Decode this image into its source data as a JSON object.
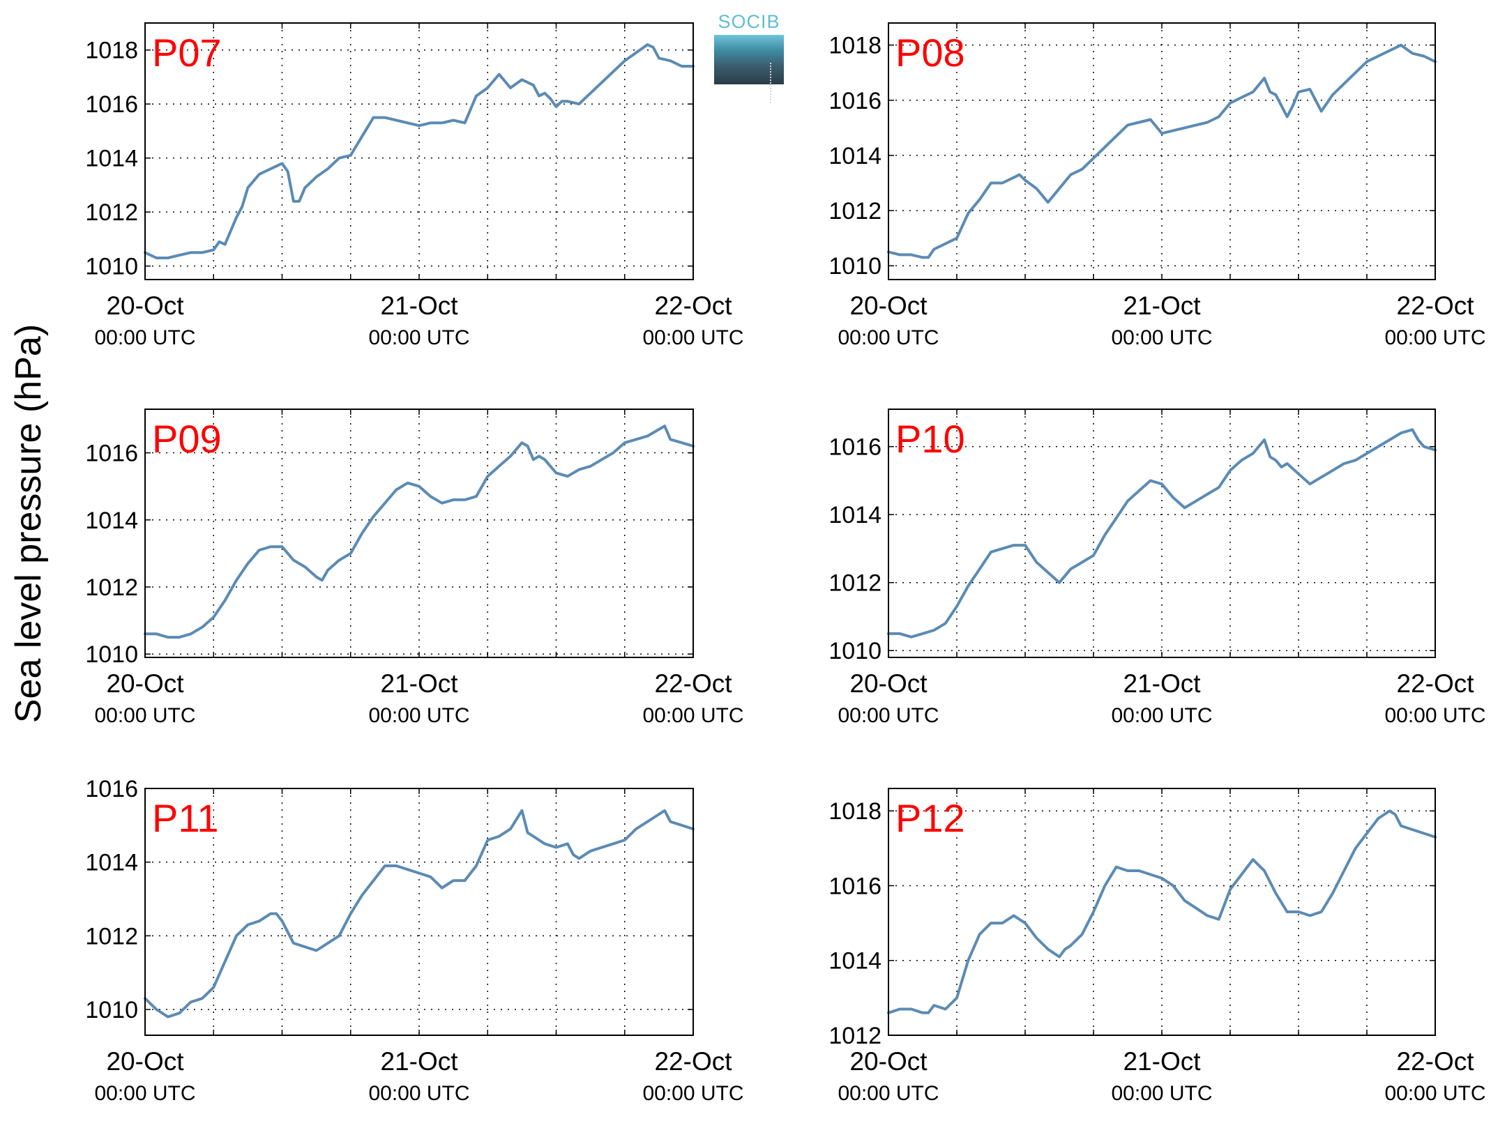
{
  "figure": {
    "ylabel": "Sea level pressure (hPa)",
    "logo_text": "SOCIB",
    "line_color": "#5b8bb4",
    "label_color": "#ff0000"
  },
  "chart_data": [
    {
      "type": "line",
      "label": "P07",
      "x_ticks": [
        "20-Oct",
        "21-Oct",
        "22-Oct"
      ],
      "x_tick_sub": "00:00 UTC",
      "xlim_hours": [
        0,
        48
      ],
      "ylim": [
        1009.5,
        1019
      ],
      "y_ticks": [
        1010,
        1012,
        1014,
        1016,
        1018
      ],
      "grid": true,
      "series": [
        {
          "x_hours": [
            0,
            1,
            2,
            3,
            4,
            5,
            6,
            6.5,
            7,
            8,
            8.5,
            9,
            10,
            11,
            12,
            12.5,
            13,
            13.5,
            14,
            15,
            16,
            17,
            18,
            19,
            20,
            21,
            22,
            23,
            24,
            25,
            26,
            27,
            28,
            29,
            30,
            31,
            32,
            33,
            33.5,
            34,
            34.5,
            35,
            35.5,
            36,
            36.5,
            37,
            38,
            39,
            40,
            41,
            42,
            43,
            44,
            44.5,
            45,
            46,
            47,
            48
          ],
          "values": [
            1010.5,
            1010.3,
            1010.3,
            1010.4,
            1010.5,
            1010.5,
            1010.6,
            1010.9,
            1010.8,
            1011.8,
            1012.2,
            1012.9,
            1013.4,
            1013.6,
            1013.8,
            1013.5,
            1012.4,
            1012.4,
            1012.9,
            1013.3,
            1013.6,
            1014.0,
            1014.1,
            1014.8,
            1015.5,
            1015.5,
            1015.4,
            1015.3,
            1015.2,
            1015.3,
            1015.3,
            1015.4,
            1015.3,
            1016.3,
            1016.6,
            1017.1,
            1016.6,
            1016.9,
            1016.8,
            1016.7,
            1016.3,
            1016.4,
            1016.2,
            1015.9,
            1016.1,
            1016.1,
            1016.0,
            1016.4,
            1016.8,
            1017.2,
            1017.6,
            1017.9,
            1018.2,
            1018.1,
            1017.7,
            1017.6,
            1017.4,
            1017.4
          ]
        }
      ]
    },
    {
      "type": "line",
      "label": "P08",
      "x_ticks": [
        "20-Oct",
        "21-Oct",
        "22-Oct"
      ],
      "x_tick_sub": "00:00 UTC",
      "xlim_hours": [
        0,
        48
      ],
      "ylim": [
        1009.5,
        1018.8
      ],
      "y_ticks": [
        1010,
        1012,
        1014,
        1016,
        1018
      ],
      "grid": true,
      "series": [
        {
          "x_hours": [
            0,
            1,
            2,
            3,
            3.5,
            4,
            5,
            6,
            7,
            8,
            9,
            10,
            11,
            11.5,
            12,
            13,
            14,
            15,
            16,
            17,
            18,
            19,
            20,
            21,
            22,
            23,
            24,
            25,
            26,
            27,
            28,
            29,
            30,
            31,
            32,
            33,
            33.5,
            34,
            34.5,
            35,
            35.5,
            36,
            37,
            38,
            39,
            40,
            41,
            42,
            43,
            44,
            45,
            46,
            47,
            48
          ],
          "values": [
            1010.5,
            1010.4,
            1010.4,
            1010.3,
            1010.3,
            1010.6,
            1010.8,
            1011.0,
            1011.9,
            1012.4,
            1013.0,
            1013.0,
            1013.2,
            1013.3,
            1013.1,
            1012.8,
            1012.3,
            1012.8,
            1013.3,
            1013.5,
            1013.9,
            1014.3,
            1014.7,
            1015.1,
            1015.2,
            1015.3,
            1014.8,
            1014.9,
            1015.0,
            1015.1,
            1015.2,
            1015.4,
            1015.9,
            1016.1,
            1016.3,
            1016.8,
            1016.3,
            1016.2,
            1015.8,
            1015.4,
            1015.8,
            1016.3,
            1016.4,
            1015.6,
            1016.2,
            1016.6,
            1017.0,
            1017.4,
            1017.6,
            1017.8,
            1018.0,
            1017.7,
            1017.6,
            1017.4
          ]
        }
      ]
    },
    {
      "type": "line",
      "label": "P09",
      "x_ticks": [
        "20-Oct",
        "21-Oct",
        "22-Oct"
      ],
      "x_tick_sub": "00:00 UTC",
      "xlim_hours": [
        0,
        48
      ],
      "ylim": [
        1009.9,
        1017.3
      ],
      "y_ticks": [
        1010,
        1012,
        1014,
        1016
      ],
      "grid": true,
      "series": [
        {
          "x_hours": [
            0,
            1,
            2,
            3,
            4,
            5,
            6,
            7,
            8,
            9,
            10,
            11,
            12,
            13,
            14,
            15,
            15.5,
            16,
            17,
            18,
            19,
            20,
            21,
            22,
            23,
            24,
            25,
            26,
            27,
            28,
            29,
            30,
            31,
            32,
            33,
            33.5,
            34,
            34.5,
            35,
            36,
            37,
            38,
            39,
            40,
            41,
            42,
            43,
            44,
            45,
            45.5,
            46,
            47,
            48
          ],
          "values": [
            1010.6,
            1010.6,
            1010.5,
            1010.5,
            1010.6,
            1010.8,
            1011.1,
            1011.6,
            1012.2,
            1012.7,
            1013.1,
            1013.2,
            1013.2,
            1012.8,
            1012.6,
            1012.3,
            1012.2,
            1012.5,
            1012.8,
            1013.0,
            1013.6,
            1014.1,
            1014.5,
            1014.9,
            1015.1,
            1015.0,
            1014.7,
            1014.5,
            1014.6,
            1014.6,
            1014.7,
            1015.3,
            1015.6,
            1015.9,
            1016.3,
            1016.2,
            1015.8,
            1015.9,
            1015.8,
            1015.4,
            1015.3,
            1015.5,
            1015.6,
            1015.8,
            1016.0,
            1016.3,
            1016.4,
            1016.5,
            1016.7,
            1016.8,
            1016.4,
            1016.3,
            1016.2
          ]
        }
      ]
    },
    {
      "type": "line",
      "label": "P10",
      "x_ticks": [
        "20-Oct",
        "21-Oct",
        "22-Oct"
      ],
      "x_tick_sub": "00:00 UTC",
      "xlim_hours": [
        0,
        48
      ],
      "ylim": [
        1009.8,
        1017.1
      ],
      "y_ticks": [
        1010,
        1012,
        1014,
        1016
      ],
      "grid": true,
      "series": [
        {
          "x_hours": [
            0,
            1,
            2,
            3,
            4,
            5,
            6,
            7,
            8,
            9,
            10,
            11,
            12,
            13,
            14,
            15,
            16,
            17,
            18,
            19,
            20,
            21,
            22,
            23,
            24,
            25,
            26,
            27,
            28,
            29,
            30,
            31,
            32,
            33,
            33.5,
            34,
            34.5,
            35,
            36,
            37,
            38,
            39,
            40,
            41,
            42,
            43,
            44,
            45,
            46,
            46.5,
            47,
            48
          ],
          "values": [
            1010.5,
            1010.5,
            1010.4,
            1010.5,
            1010.6,
            1010.8,
            1011.3,
            1011.9,
            1012.4,
            1012.9,
            1013.0,
            1013.1,
            1013.1,
            1012.6,
            1012.3,
            1012.0,
            1012.4,
            1012.6,
            1012.8,
            1013.4,
            1013.9,
            1014.4,
            1014.7,
            1015.0,
            1014.9,
            1014.5,
            1014.2,
            1014.4,
            1014.6,
            1014.8,
            1015.3,
            1015.6,
            1015.8,
            1016.2,
            1015.7,
            1015.6,
            1015.4,
            1015.5,
            1015.2,
            1014.9,
            1015.1,
            1015.3,
            1015.5,
            1015.6,
            1015.8,
            1016.0,
            1016.2,
            1016.4,
            1016.5,
            1016.2,
            1016.0,
            1015.9
          ]
        }
      ]
    },
    {
      "type": "line",
      "label": "P11",
      "x_ticks": [
        "20-Oct",
        "21-Oct",
        "22-Oct"
      ],
      "x_tick_sub": "00:00 UTC",
      "xlim_hours": [
        0,
        48
      ],
      "ylim": [
        1009.3,
        1016
      ],
      "y_ticks": [
        1010,
        1012,
        1014,
        1016
      ],
      "grid": true,
      "series": [
        {
          "x_hours": [
            0,
            1,
            2,
            3,
            4,
            5,
            6,
            7,
            8,
            9,
            10,
            11,
            11.5,
            12,
            13,
            14,
            15,
            16,
            17,
            18,
            19,
            20,
            21,
            22,
            23,
            24,
            25,
            26,
            27,
            28,
            29,
            30,
            31,
            32,
            33,
            33.5,
            34,
            35,
            36,
            37,
            37.5,
            38,
            39,
            40,
            41,
            42,
            43,
            44,
            45,
            45.5,
            46,
            47,
            48
          ],
          "values": [
            1010.3,
            1010.0,
            1009.8,
            1009.9,
            1010.2,
            1010.3,
            1010.6,
            1011.3,
            1012.0,
            1012.3,
            1012.4,
            1012.6,
            1012.6,
            1012.4,
            1011.8,
            1011.7,
            1011.6,
            1011.8,
            1012.0,
            1012.6,
            1013.1,
            1013.5,
            1013.9,
            1013.9,
            1013.8,
            1013.7,
            1013.6,
            1013.3,
            1013.5,
            1013.5,
            1013.9,
            1014.6,
            1014.7,
            1014.9,
            1015.4,
            1014.8,
            1014.7,
            1014.5,
            1014.4,
            1014.5,
            1014.2,
            1014.1,
            1014.3,
            1014.4,
            1014.5,
            1014.6,
            1014.9,
            1015.1,
            1015.3,
            1015.4,
            1015.1,
            1015.0,
            1014.9
          ]
        }
      ]
    },
    {
      "type": "line",
      "label": "P12",
      "x_ticks": [
        "20-Oct",
        "21-Oct",
        "22-Oct"
      ],
      "x_tick_sub": "00:00 UTC",
      "xlim_hours": [
        0,
        48
      ],
      "ylim": [
        1012,
        1018.6
      ],
      "y_ticks": [
        1012,
        1014,
        1016,
        1018
      ],
      "grid": true,
      "series": [
        {
          "x_hours": [
            0,
            1,
            2,
            3,
            3.5,
            4,
            5,
            6,
            7,
            8,
            9,
            10,
            11,
            12,
            13,
            14,
            15,
            15.5,
            16,
            17,
            18,
            19,
            20,
            21,
            22,
            23,
            24,
            25,
            26,
            27,
            28,
            29,
            30,
            31,
            32,
            33,
            34,
            35,
            36,
            37,
            38,
            39,
            40,
            41,
            42,
            43,
            44,
            44.5,
            45,
            46,
            47,
            48
          ],
          "values": [
            1012.6,
            1012.7,
            1012.7,
            1012.6,
            1012.6,
            1012.8,
            1012.7,
            1013.0,
            1014.0,
            1014.7,
            1015.0,
            1015.0,
            1015.2,
            1015.0,
            1014.6,
            1014.3,
            1014.1,
            1014.3,
            1014.4,
            1014.7,
            1015.3,
            1016.0,
            1016.5,
            1016.4,
            1016.4,
            1016.3,
            1016.2,
            1016.0,
            1015.6,
            1015.4,
            1015.2,
            1015.1,
            1015.9,
            1016.3,
            1016.7,
            1016.4,
            1015.8,
            1015.3,
            1015.3,
            1015.2,
            1015.3,
            1015.8,
            1016.4,
            1017.0,
            1017.4,
            1017.8,
            1018.0,
            1017.9,
            1017.6,
            1017.5,
            1017.4,
            1017.3
          ]
        }
      ]
    }
  ]
}
